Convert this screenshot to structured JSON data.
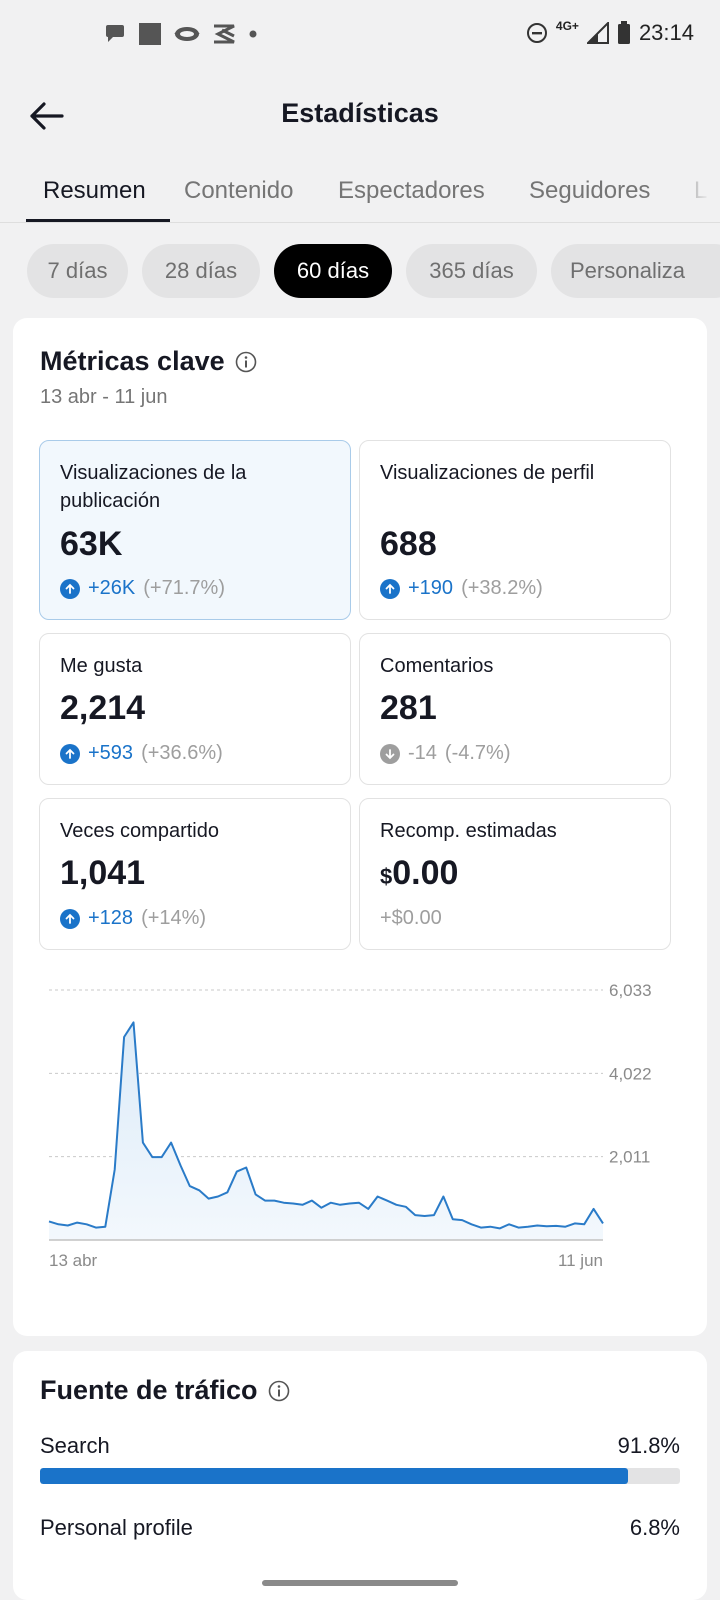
{
  "status_bar": {
    "time": "23:14",
    "network": "4G+",
    "icons": [
      "chat-bubble-icon",
      "square-icon",
      "eye-icon",
      "capcut-icon",
      "dot-icon",
      "dnd-icon",
      "signal-icon",
      "battery-icon"
    ]
  },
  "header": {
    "title": "Estadísticas",
    "back_icon": "back-arrow-icon"
  },
  "tabs": [
    {
      "label": "Resumen",
      "active": true
    },
    {
      "label": "Contenido",
      "active": false
    },
    {
      "label": "Espectadores",
      "active": false
    },
    {
      "label": "Seguidores",
      "active": false
    },
    {
      "label": "L",
      "active": false
    }
  ],
  "periods": [
    {
      "label": "7 días",
      "active": false
    },
    {
      "label": "28 días",
      "active": false
    },
    {
      "label": "60 días",
      "active": true
    },
    {
      "label": "365 días",
      "active": false
    },
    {
      "label": "Personaliza",
      "active": false
    }
  ],
  "key_metrics": {
    "title": "Métricas clave",
    "info_icon": "info-icon",
    "date_range": "13 abr - 11 jun",
    "cards": [
      {
        "label": "Visualizaciones de la publicación",
        "value": "63K",
        "delta": "+26K",
        "percent": "(+71.7%)",
        "direction": "up",
        "selected": true
      },
      {
        "label": "Visualizaciones de perfil",
        "value": "688",
        "delta": "+190",
        "percent": "(+38.2%)",
        "direction": "up",
        "selected": false
      },
      {
        "label": "Me gusta",
        "value": "2,214",
        "delta": "+593",
        "percent": "(+36.6%)",
        "direction": "up",
        "selected": false
      },
      {
        "label": "Comentarios",
        "value": "281",
        "delta": "-14",
        "percent": "(-4.7%)",
        "direction": "down",
        "selected": false
      },
      {
        "label": "Veces compartido",
        "value": "1,041",
        "delta": "+128",
        "percent": "(+14%)",
        "direction": "up",
        "selected": false
      },
      {
        "label": "Recomp. estimadas",
        "currency": "$",
        "value": "0.00",
        "delta": "+$0.00",
        "percent": "",
        "direction": "none",
        "selected": false
      }
    ]
  },
  "chart_data": {
    "type": "area",
    "x_start_label": "13 abr",
    "x_end_label": "11 jun",
    "y_ticks": [
      "6,033",
      "4,022",
      "2,011"
    ],
    "y_tick_values": [
      6033,
      4022,
      2011
    ],
    "ylim": [
      0,
      6033
    ],
    "grid": true,
    "line_color": "#2a7bc8",
    "values": [
      450,
      380,
      350,
      420,
      380,
      300,
      320,
      1700,
      4900,
      5250,
      2350,
      2000,
      2000,
      2350,
      1800,
      1300,
      1200,
      1000,
      1050,
      1150,
      1650,
      1750,
      1100,
      950,
      950,
      900,
      880,
      850,
      950,
      780,
      900,
      850,
      880,
      900,
      750,
      1050,
      950,
      850,
      800,
      600,
      580,
      600,
      1050,
      500,
      480,
      380,
      300,
      320,
      280,
      380,
      300,
      320,
      350,
      330,
      340,
      320,
      400,
      380,
      750,
      400
    ]
  },
  "traffic": {
    "title": "Fuente de tráfico",
    "info_icon": "info-icon",
    "sources": [
      {
        "name": "Search",
        "percent": "91.8%",
        "fraction": 0.918
      },
      {
        "name": "Personal profile",
        "percent": "6.8%",
        "fraction": 0.068
      }
    ]
  },
  "colors": {
    "accent": "#1a73c9",
    "chart_line": "#2a7bc8",
    "chart_fill": "#dcebf8",
    "active_chip": "#000000"
  }
}
